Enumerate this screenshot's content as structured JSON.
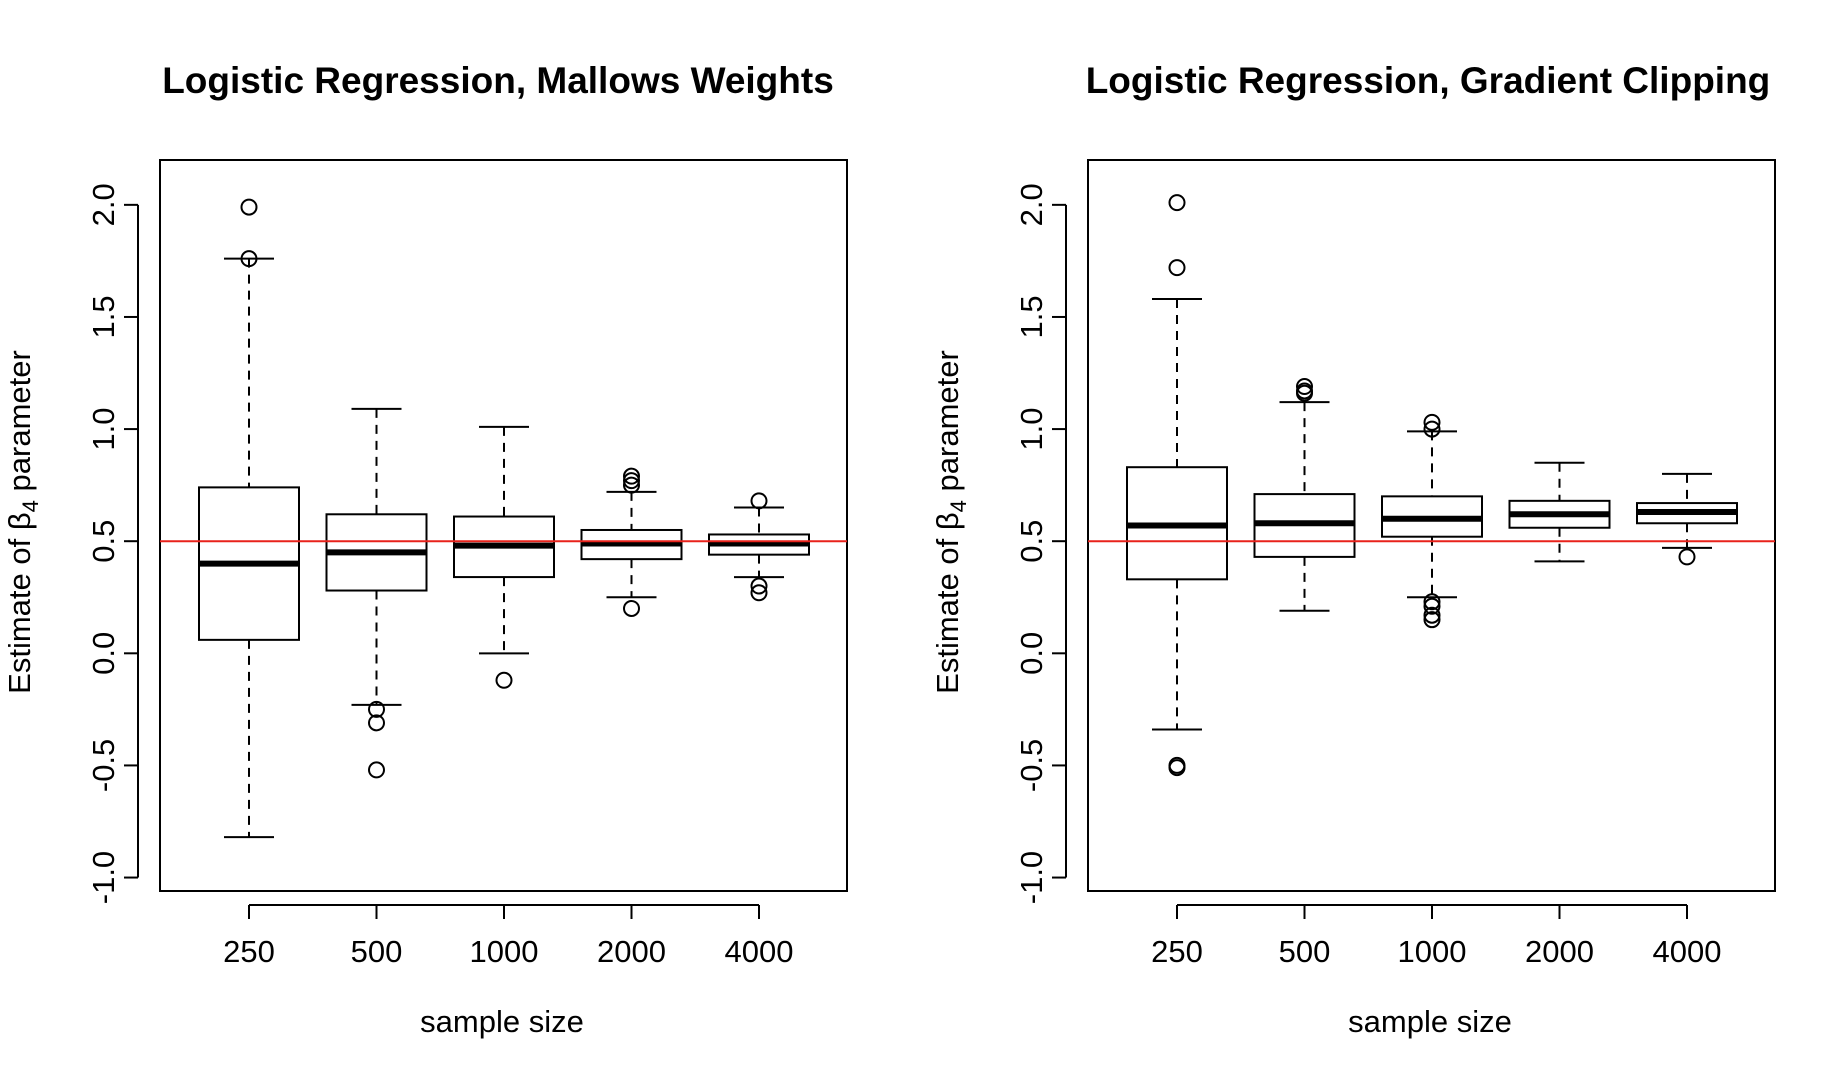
{
  "colors": {
    "reference_line": "#e8221b",
    "box": "#000000",
    "background": "#ffffff"
  },
  "charts": [
    {
      "title": "Logistic Regression, Mallows Weights",
      "xlabel": "sample size",
      "ylabel_prefix": "Estimate of ",
      "ylabel_symbol": "β",
      "ylabel_subscript": "4",
      "ylabel_suffix": " parameter"
    },
    {
      "title": "Logistic Regression, Gradient Clipping",
      "xlabel": "sample size",
      "ylabel_prefix": "Estimate of ",
      "ylabel_symbol": "β",
      "ylabel_subscript": "4",
      "ylabel_suffix": " parameter"
    }
  ],
  "chart_data": [
    {
      "type": "box",
      "title": "Logistic Regression, Mallows Weights",
      "xlabel": "sample size",
      "ylabel": "Estimate of β4 parameter",
      "categories": [
        "250",
        "500",
        "1000",
        "2000",
        "4000"
      ],
      "ylim": [
        -1.06,
        2.2
      ],
      "yticks": [
        -1.0,
        -0.5,
        0.0,
        0.5,
        1.0,
        1.5,
        2.0
      ],
      "ytick_labels": [
        "-1.0",
        "-0.5",
        "0.0",
        "0.5",
        "1.0",
        "1.5",
        "2.0"
      ],
      "reference_line": 0.5,
      "boxes": [
        {
          "lower_whisker": -0.82,
          "q1": 0.06,
          "median": 0.4,
          "q3": 0.74,
          "upper_whisker": 1.76,
          "outliers": [
            1.99,
            1.76
          ]
        },
        {
          "lower_whisker": -0.23,
          "q1": 0.28,
          "median": 0.45,
          "q3": 0.62,
          "upper_whisker": 1.09,
          "outliers": [
            -0.25,
            -0.31,
            -0.52
          ]
        },
        {
          "lower_whisker": 0.0,
          "q1": 0.34,
          "median": 0.48,
          "q3": 0.61,
          "upper_whisker": 1.01,
          "outliers": [
            -0.12
          ]
        },
        {
          "lower_whisker": 0.25,
          "q1": 0.42,
          "median": 0.49,
          "q3": 0.55,
          "upper_whisker": 0.72,
          "outliers": [
            0.79,
            0.77,
            0.75,
            0.2
          ]
        },
        {
          "lower_whisker": 0.34,
          "q1": 0.44,
          "median": 0.49,
          "q3": 0.53,
          "upper_whisker": 0.65,
          "outliers": [
            0.68,
            0.3,
            0.27
          ]
        }
      ]
    },
    {
      "type": "box",
      "title": "Logistic Regression, Gradient Clipping",
      "xlabel": "sample size",
      "ylabel": "Estimate of β4 parameter",
      "categories": [
        "250",
        "500",
        "1000",
        "2000",
        "4000"
      ],
      "ylim": [
        -1.06,
        2.2
      ],
      "yticks": [
        -1.0,
        -0.5,
        0.0,
        0.5,
        1.0,
        1.5,
        2.0
      ],
      "ytick_labels": [
        "-1.0",
        "-0.5",
        "0.0",
        "0.5",
        "1.0",
        "1.5",
        "2.0"
      ],
      "reference_line": 0.5,
      "boxes": [
        {
          "lower_whisker": -0.34,
          "q1": 0.33,
          "median": 0.57,
          "q3": 0.83,
          "upper_whisker": 1.58,
          "outliers": [
            2.01,
            1.72,
            -0.5,
            -0.51
          ]
        },
        {
          "lower_whisker": 0.19,
          "q1": 0.43,
          "median": 0.58,
          "q3": 0.71,
          "upper_whisker": 1.12,
          "outliers": [
            1.19,
            1.17,
            1.16
          ]
        },
        {
          "lower_whisker": 0.25,
          "q1": 0.52,
          "median": 0.6,
          "q3": 0.7,
          "upper_whisker": 0.99,
          "outliers": [
            1.03,
            1.0,
            0.23,
            0.21,
            0.17,
            0.15
          ]
        },
        {
          "lower_whisker": 0.41,
          "q1": 0.56,
          "median": 0.62,
          "q3": 0.68,
          "upper_whisker": 0.85,
          "outliers": []
        },
        {
          "lower_whisker": 0.47,
          "q1": 0.58,
          "median": 0.63,
          "q3": 0.67,
          "upper_whisker": 0.8,
          "outliers": [
            0.43
          ]
        }
      ]
    }
  ]
}
